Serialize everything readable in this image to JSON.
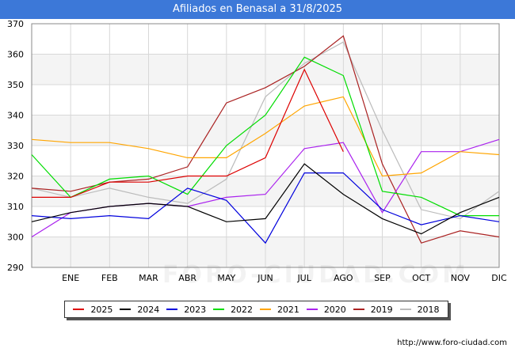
{
  "title": "Afiliados en Benasal a 31/8/2025",
  "source": "http://www.foro-ciudad.com",
  "watermark": "FORO-CIUDAD.COM",
  "chart_data": {
    "type": "line",
    "title": "Afiliados en Benasal a 31/8/2025",
    "x": [
      "",
      "ENE",
      "FEB",
      "MAR",
      "ABR",
      "MAY",
      "JUN",
      "JUL",
      "AGO",
      "SEP",
      "OCT",
      "NOV",
      "DIC"
    ],
    "ylim": [
      290,
      370
    ],
    "yticks": [
      290,
      300,
      310,
      320,
      330,
      340,
      350,
      360,
      370
    ],
    "grid": true,
    "legend_position": "bottom",
    "series": [
      {
        "name": "2025",
        "color": "#dd0000",
        "values": [
          313,
          313,
          318,
          318,
          320,
          320,
          326,
          355,
          328,
          null,
          null,
          null,
          null
        ]
      },
      {
        "name": "2024",
        "color": "#000000",
        "values": [
          305,
          308,
          310,
          311,
          310,
          305,
          306,
          324,
          314,
          306,
          301,
          308,
          313
        ]
      },
      {
        "name": "2023",
        "color": "#0000dd",
        "values": [
          307,
          306,
          307,
          306,
          316,
          312,
          298,
          321,
          321,
          309,
          304,
          307,
          305
        ]
      },
      {
        "name": "2022",
        "color": "#00dd00",
        "values": [
          327,
          313,
          319,
          320,
          314,
          330,
          340,
          359,
          353,
          315,
          313,
          307,
          307
        ]
      },
      {
        "name": "2021",
        "color": "#ffa500",
        "values": [
          332,
          331,
          331,
          329,
          326,
          326,
          334,
          343,
          346,
          320,
          321,
          328,
          327
        ]
      },
      {
        "name": "2020",
        "color": "#aa22ee",
        "values": [
          300,
          308,
          310,
          311,
          310,
          313,
          314,
          329,
          331,
          308,
          328,
          328,
          332
        ]
      },
      {
        "name": "2019",
        "color": "#aa2222",
        "values": [
          316,
          315,
          318,
          319,
          323,
          344,
          349,
          356,
          366,
          324,
          298,
          302,
          300
        ]
      },
      {
        "name": "2018",
        "color": "#bbbbbb",
        "values": [
          316,
          313,
          316,
          313,
          311,
          319,
          346,
          357,
          364,
          335,
          309,
          306,
          315
        ]
      }
    ]
  }
}
